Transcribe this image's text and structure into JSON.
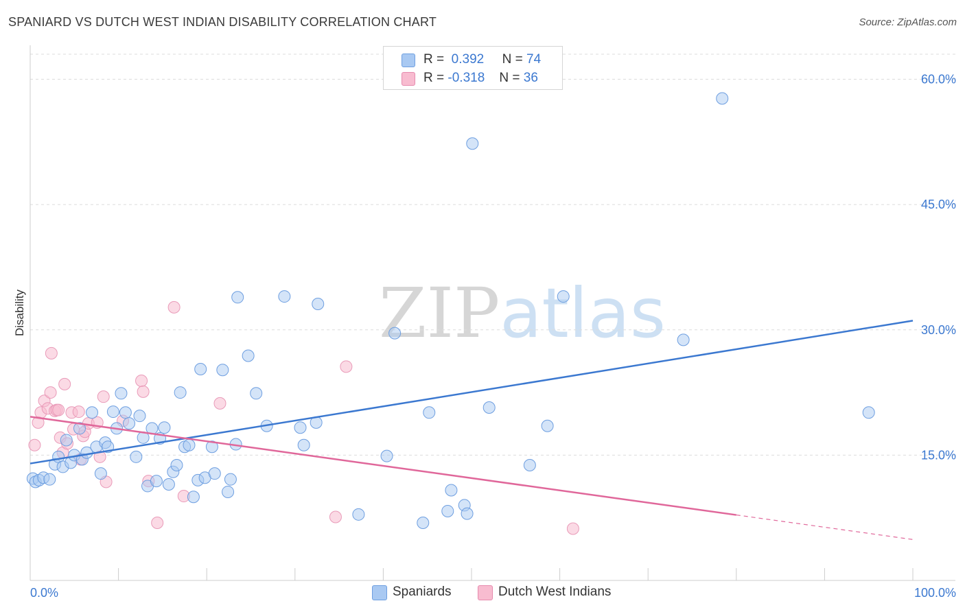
{
  "title": "SPANIARD VS DUTCH WEST INDIAN DISABILITY CORRELATION CHART",
  "source": "Source: ZipAtlas.com",
  "watermark": {
    "zip": "ZIP",
    "atlas": "atlas"
  },
  "legend": {
    "r_label": "R =",
    "n_label": "N =",
    "rows": [
      {
        "r": "0.392",
        "n": "74",
        "color": "#a9c9f2"
      },
      {
        "r": "-0.318",
        "n": "36",
        "color": "#f8bcd0"
      }
    ]
  },
  "bottom_legend": [
    "Spaniards",
    "Dutch West Indians"
  ],
  "chart_data": {
    "type": "scatter",
    "title": "SPANIARD VS DUTCH WEST INDIAN DISABILITY CORRELATION CHART",
    "xlabel": "",
    "ylabel": "Disability",
    "xlim": [
      0,
      100
    ],
    "ylim": [
      0,
      63
    ],
    "x_tick_labels": [
      "0.0%",
      "100.0%"
    ],
    "y_ticks": [
      15,
      30,
      45,
      60
    ],
    "y_tick_labels": [
      "15.0%",
      "30.0%",
      "45.0%",
      "60.0%"
    ],
    "grid": true,
    "legend_position": "top-center",
    "colors": {
      "spaniards": "#3b78d0",
      "dutch_west_indians": "#e0679a"
    },
    "series": [
      {
        "name": "Spaniards",
        "r": 0.392,
        "n": 74,
        "trend": {
          "x": [
            0,
            100
          ],
          "y": [
            14.0,
            31.1
          ]
        },
        "points": [
          [
            0.3,
            12.2
          ],
          [
            0.6,
            11.8
          ],
          [
            1.0,
            12.0
          ],
          [
            1.5,
            12.3
          ],
          [
            2.2,
            12.1
          ],
          [
            2.8,
            13.9
          ],
          [
            3.2,
            14.8
          ],
          [
            3.7,
            13.6
          ],
          [
            4.1,
            16.8
          ],
          [
            4.6,
            14.1
          ],
          [
            5.0,
            15.0
          ],
          [
            5.6,
            18.2
          ],
          [
            5.9,
            14.5
          ],
          [
            6.4,
            15.3
          ],
          [
            7.0,
            20.1
          ],
          [
            7.5,
            16.0
          ],
          [
            8.0,
            12.8
          ],
          [
            8.5,
            16.5
          ],
          [
            8.8,
            16.0
          ],
          [
            9.4,
            20.2
          ],
          [
            9.8,
            18.2
          ],
          [
            10.3,
            22.4
          ],
          [
            10.8,
            20.1
          ],
          [
            11.2,
            18.8
          ],
          [
            12.0,
            14.8
          ],
          [
            12.4,
            19.7
          ],
          [
            12.8,
            17.1
          ],
          [
            13.3,
            11.3
          ],
          [
            13.8,
            18.2
          ],
          [
            14.3,
            11.9
          ],
          [
            14.7,
            17.0
          ],
          [
            15.2,
            18.3
          ],
          [
            15.7,
            11.5
          ],
          [
            16.2,
            13.0
          ],
          [
            16.6,
            13.8
          ],
          [
            17.0,
            22.5
          ],
          [
            17.5,
            16.0
          ],
          [
            18.0,
            16.2
          ],
          [
            18.5,
            10.0
          ],
          [
            19.0,
            12.0
          ],
          [
            19.3,
            25.3
          ],
          [
            19.8,
            12.3
          ],
          [
            20.6,
            16.0
          ],
          [
            20.9,
            12.8
          ],
          [
            21.8,
            25.2
          ],
          [
            22.4,
            10.6
          ],
          [
            22.7,
            12.1
          ],
          [
            23.3,
            16.3
          ],
          [
            23.5,
            33.9
          ],
          [
            24.7,
            26.9
          ],
          [
            25.6,
            22.4
          ],
          [
            26.8,
            18.5
          ],
          [
            28.8,
            34.0
          ],
          [
            30.6,
            18.3
          ],
          [
            31.0,
            16.2
          ],
          [
            32.4,
            18.9
          ],
          [
            32.6,
            33.1
          ],
          [
            37.2,
            7.9
          ],
          [
            40.4,
            14.9
          ],
          [
            41.3,
            29.6
          ],
          [
            44.5,
            6.9
          ],
          [
            45.2,
            20.1
          ],
          [
            47.3,
            8.3
          ],
          [
            47.7,
            10.8
          ],
          [
            49.2,
            9.0
          ],
          [
            49.5,
            8.0
          ],
          [
            50.1,
            52.3
          ],
          [
            52.0,
            20.7
          ],
          [
            56.6,
            13.8
          ],
          [
            58.6,
            18.5
          ],
          [
            60.4,
            34.0
          ],
          [
            74.0,
            28.8
          ],
          [
            78.4,
            57.7
          ],
          [
            95.0,
            20.1
          ]
        ]
      },
      {
        "name": "Dutch West Indians",
        "r": -0.318,
        "n": 36,
        "trend": {
          "x": [
            0,
            100
          ],
          "y": [
            19.6,
            4.9
          ]
        },
        "points": [
          [
            0.5,
            16.2
          ],
          [
            0.9,
            18.9
          ],
          [
            1.2,
            20.1
          ],
          [
            1.6,
            21.5
          ],
          [
            2.0,
            20.6
          ],
          [
            2.3,
            22.5
          ],
          [
            2.4,
            27.2
          ],
          [
            2.8,
            20.3
          ],
          [
            3.0,
            20.4
          ],
          [
            3.2,
            20.4
          ],
          [
            3.4,
            17.1
          ],
          [
            3.7,
            15.3
          ],
          [
            3.9,
            23.5
          ],
          [
            4.2,
            16.4
          ],
          [
            4.7,
            20.1
          ],
          [
            4.9,
            18.1
          ],
          [
            5.5,
            20.2
          ],
          [
            5.7,
            14.5
          ],
          [
            6.0,
            17.3
          ],
          [
            6.2,
            17.8
          ],
          [
            6.6,
            18.8
          ],
          [
            7.6,
            18.9
          ],
          [
            7.9,
            14.8
          ],
          [
            8.3,
            22.0
          ],
          [
            8.6,
            11.8
          ],
          [
            10.5,
            19.1
          ],
          [
            12.6,
            23.9
          ],
          [
            12.8,
            22.6
          ],
          [
            13.4,
            11.9
          ],
          [
            14.4,
            6.9
          ],
          [
            16.3,
            32.7
          ],
          [
            17.4,
            10.1
          ],
          [
            21.5,
            21.2
          ],
          [
            34.6,
            7.6
          ],
          [
            35.8,
            25.6
          ],
          [
            61.5,
            6.2
          ]
        ]
      }
    ]
  }
}
